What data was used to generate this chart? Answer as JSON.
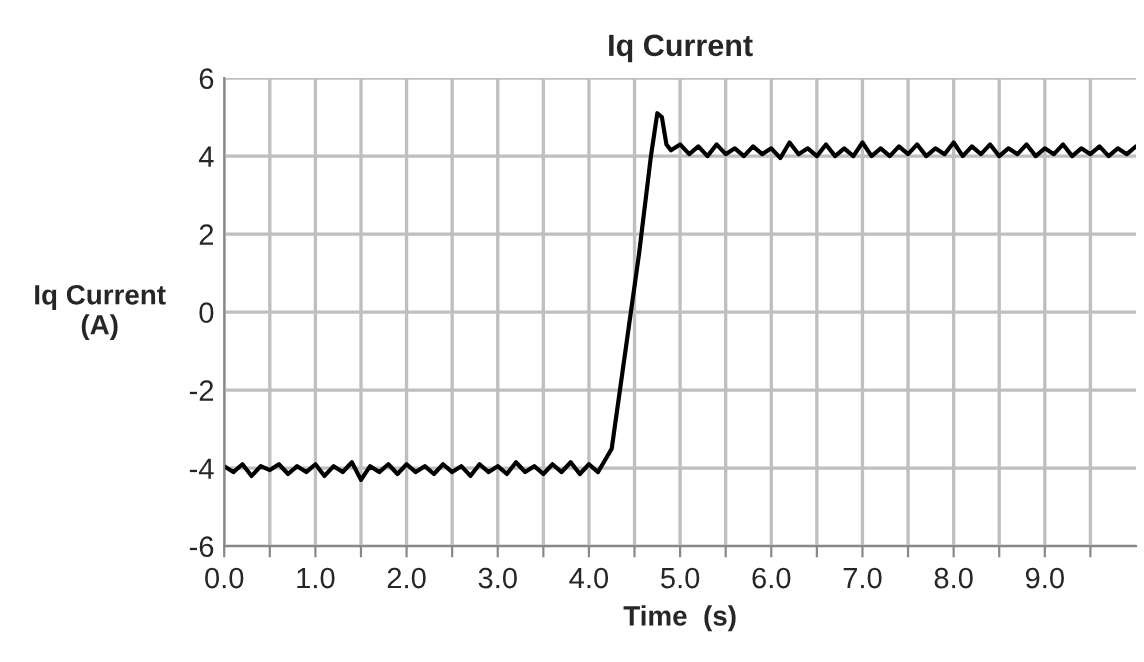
{
  "chart_data": {
    "type": "line",
    "title": "Iq Current",
    "xlabel": "Time  (s)",
    "ylabel": "Iq Current\n(A)",
    "xlim": [
      0,
      10
    ],
    "ylim": [
      -6,
      6
    ],
    "xticks": [
      {
        "value": 0,
        "label": "0.0"
      },
      {
        "value": 0.5,
        "label": null
      },
      {
        "value": 1,
        "label": "1.0"
      },
      {
        "value": 1.5,
        "label": null
      },
      {
        "value": 2,
        "label": "2.0"
      },
      {
        "value": 2.5,
        "label": null
      },
      {
        "value": 3,
        "label": "3.0"
      },
      {
        "value": 3.5,
        "label": null
      },
      {
        "value": 4,
        "label": "4.0"
      },
      {
        "value": 4.5,
        "label": null
      },
      {
        "value": 5,
        "label": "5.0"
      },
      {
        "value": 5.5,
        "label": null
      },
      {
        "value": 6,
        "label": "6.0"
      },
      {
        "value": 6.5,
        "label": null
      },
      {
        "value": 7,
        "label": "7.0"
      },
      {
        "value": 7.5,
        "label": null
      },
      {
        "value": 8,
        "label": "8.0"
      },
      {
        "value": 8.5,
        "label": null
      },
      {
        "value": 9,
        "label": "9.0"
      },
      {
        "value": 9.5,
        "label": null
      }
    ],
    "yticks": [
      -6,
      -4,
      -2,
      0,
      2,
      4,
      6
    ],
    "grid": true,
    "marker": "none",
    "line_style": "solid",
    "series": [
      {
        "color": "#000000",
        "x": [
          0.0,
          0.1,
          0.2,
          0.3,
          0.4,
          0.5,
          0.6,
          0.7,
          0.8,
          0.9,
          1.0,
          1.1,
          1.2,
          1.3,
          1.4,
          1.5,
          1.6,
          1.7,
          1.8,
          1.9,
          2.0,
          2.1,
          2.2,
          2.3,
          2.4,
          2.5,
          2.6,
          2.7,
          2.8,
          2.9,
          3.0,
          3.1,
          3.2,
          3.3,
          3.4,
          3.5,
          3.6,
          3.7,
          3.8,
          3.9,
          4.0,
          4.1,
          4.2,
          4.25,
          4.4,
          4.55,
          4.68,
          4.75,
          4.8,
          4.85,
          4.9,
          5.0,
          5.1,
          5.2,
          5.3,
          5.4,
          5.5,
          5.6,
          5.7,
          5.8,
          5.9,
          6.0,
          6.1,
          6.2,
          6.3,
          6.4,
          6.5,
          6.6,
          6.7,
          6.8,
          6.9,
          7.0,
          7.1,
          7.2,
          7.3,
          7.4,
          7.5,
          7.6,
          7.7,
          7.8,
          7.9,
          8.0,
          8.1,
          8.2,
          8.3,
          8.4,
          8.5,
          8.6,
          8.7,
          8.8,
          8.9,
          9.0,
          9.1,
          9.2,
          9.3,
          9.4,
          9.5,
          9.6,
          9.7,
          9.8,
          9.9,
          10.0
        ],
        "values": [
          -3.95,
          -4.1,
          -3.9,
          -4.2,
          -3.95,
          -4.05,
          -3.9,
          -4.15,
          -3.95,
          -4.1,
          -3.9,
          -4.2,
          -3.95,
          -4.1,
          -3.85,
          -4.3,
          -3.95,
          -4.1,
          -3.9,
          -4.15,
          -3.9,
          -4.1,
          -3.95,
          -4.15,
          -3.9,
          -4.1,
          -3.95,
          -4.2,
          -3.9,
          -4.1,
          -3.95,
          -4.15,
          -3.85,
          -4.1,
          -3.95,
          -4.15,
          -3.9,
          -4.1,
          -3.85,
          -4.15,
          -3.9,
          -4.1,
          -3.7,
          -3.5,
          -1.0,
          1.5,
          4.0,
          5.1,
          5.0,
          4.3,
          4.15,
          4.3,
          4.05,
          4.25,
          4.0,
          4.3,
          4.05,
          4.2,
          4.0,
          4.25,
          4.05,
          4.2,
          3.95,
          4.35,
          4.05,
          4.2,
          4.0,
          4.3,
          4.0,
          4.2,
          4.0,
          4.35,
          4.0,
          4.2,
          4.0,
          4.25,
          4.05,
          4.3,
          4.0,
          4.2,
          4.05,
          4.35,
          4.0,
          4.25,
          4.05,
          4.3,
          4.0,
          4.2,
          4.05,
          4.3,
          4.0,
          4.2,
          4.05,
          4.3,
          4.0,
          4.2,
          4.05,
          4.25,
          4.0,
          4.2,
          4.05,
          4.25
        ]
      }
    ]
  }
}
